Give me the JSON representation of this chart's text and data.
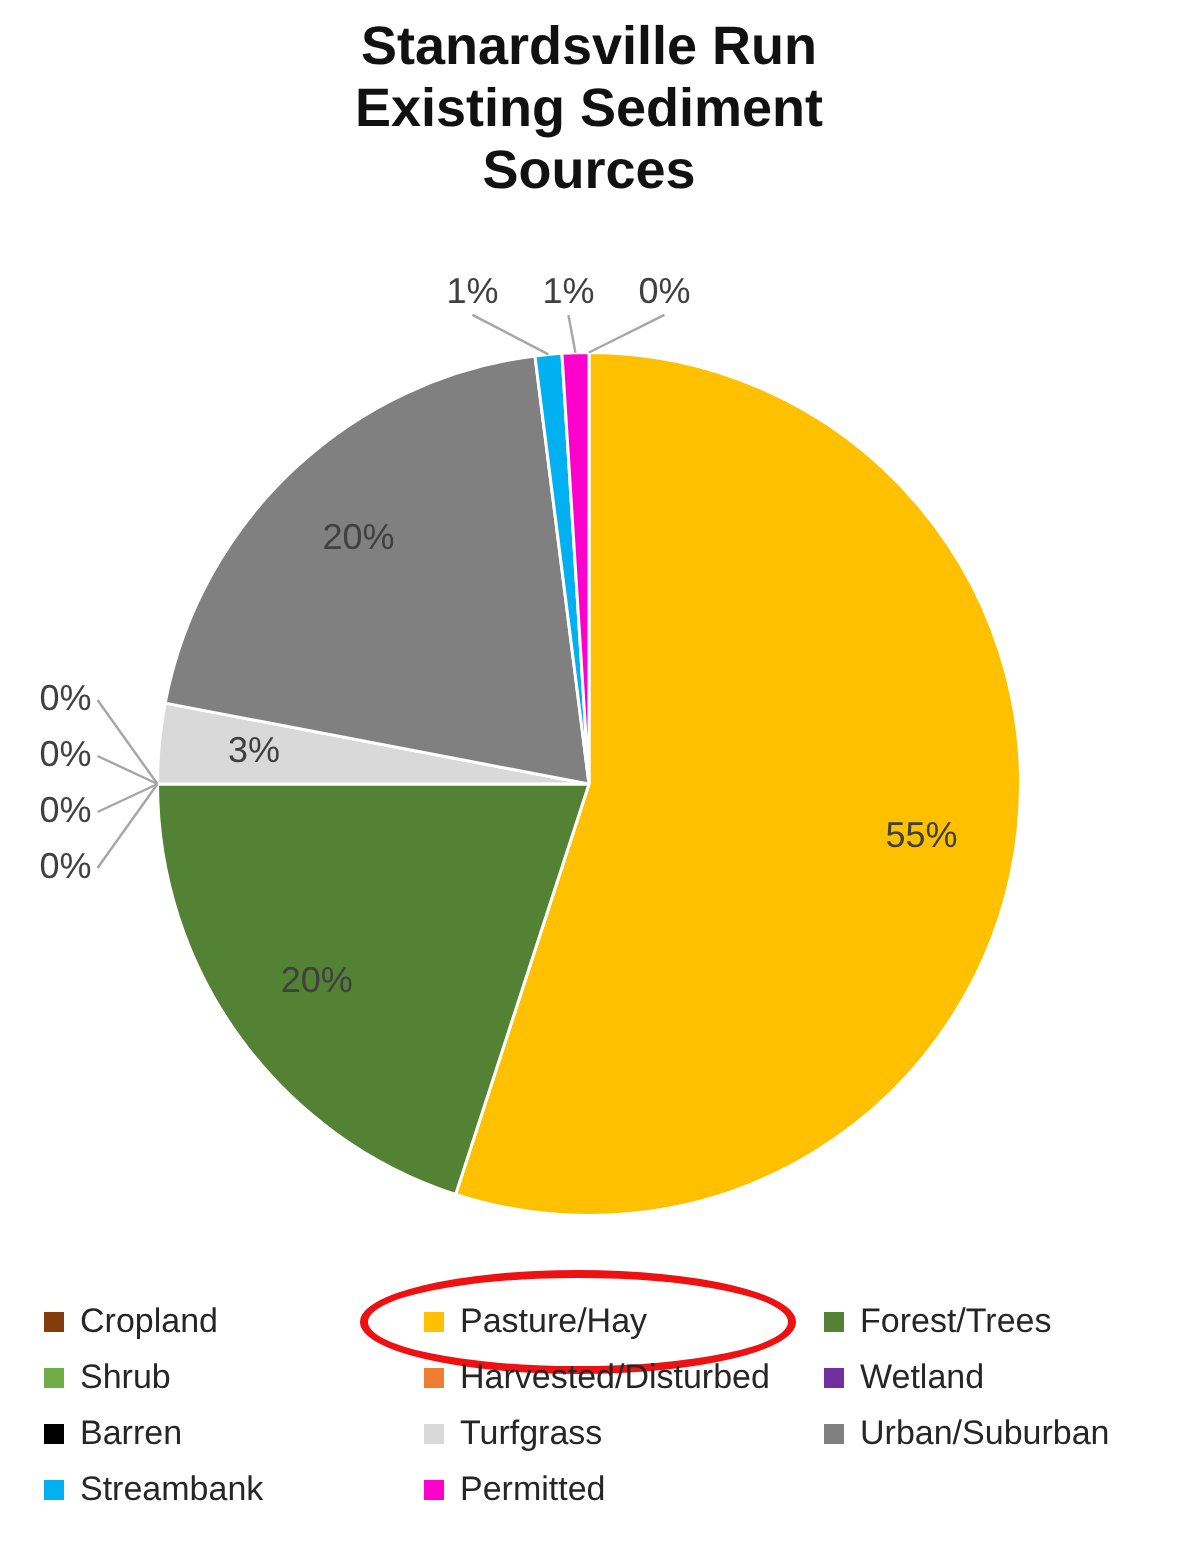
{
  "chart_data": {
    "type": "pie",
    "title": "Stanardsville Run Existing Sediment Sources",
    "categories": [
      "Cropland",
      "Pasture/Hay",
      "Forest/Trees",
      "Shrub",
      "Harvested/Disturbed",
      "Wetland",
      "Barren",
      "Turfgrass",
      "Urban/Suburban",
      "Streambank",
      "Permitted"
    ],
    "values": [
      0,
      55,
      20,
      0,
      0,
      0,
      0,
      3,
      20,
      1,
      1
    ],
    "value_labels": [
      "0%",
      "55%",
      "20%",
      "0%",
      "0%",
      "0%",
      "0%",
      "3%",
      "20%",
      "1%",
      "1%"
    ],
    "colors": [
      "#843c0c",
      "#ffc000",
      "#548235",
      "#70ad47",
      "#ed7d31",
      "#7030a0",
      "#000000",
      "#d9d9d9",
      "#808080",
      "#00b0f0",
      "#ff00cc"
    ],
    "legend": "bottom"
  }
}
